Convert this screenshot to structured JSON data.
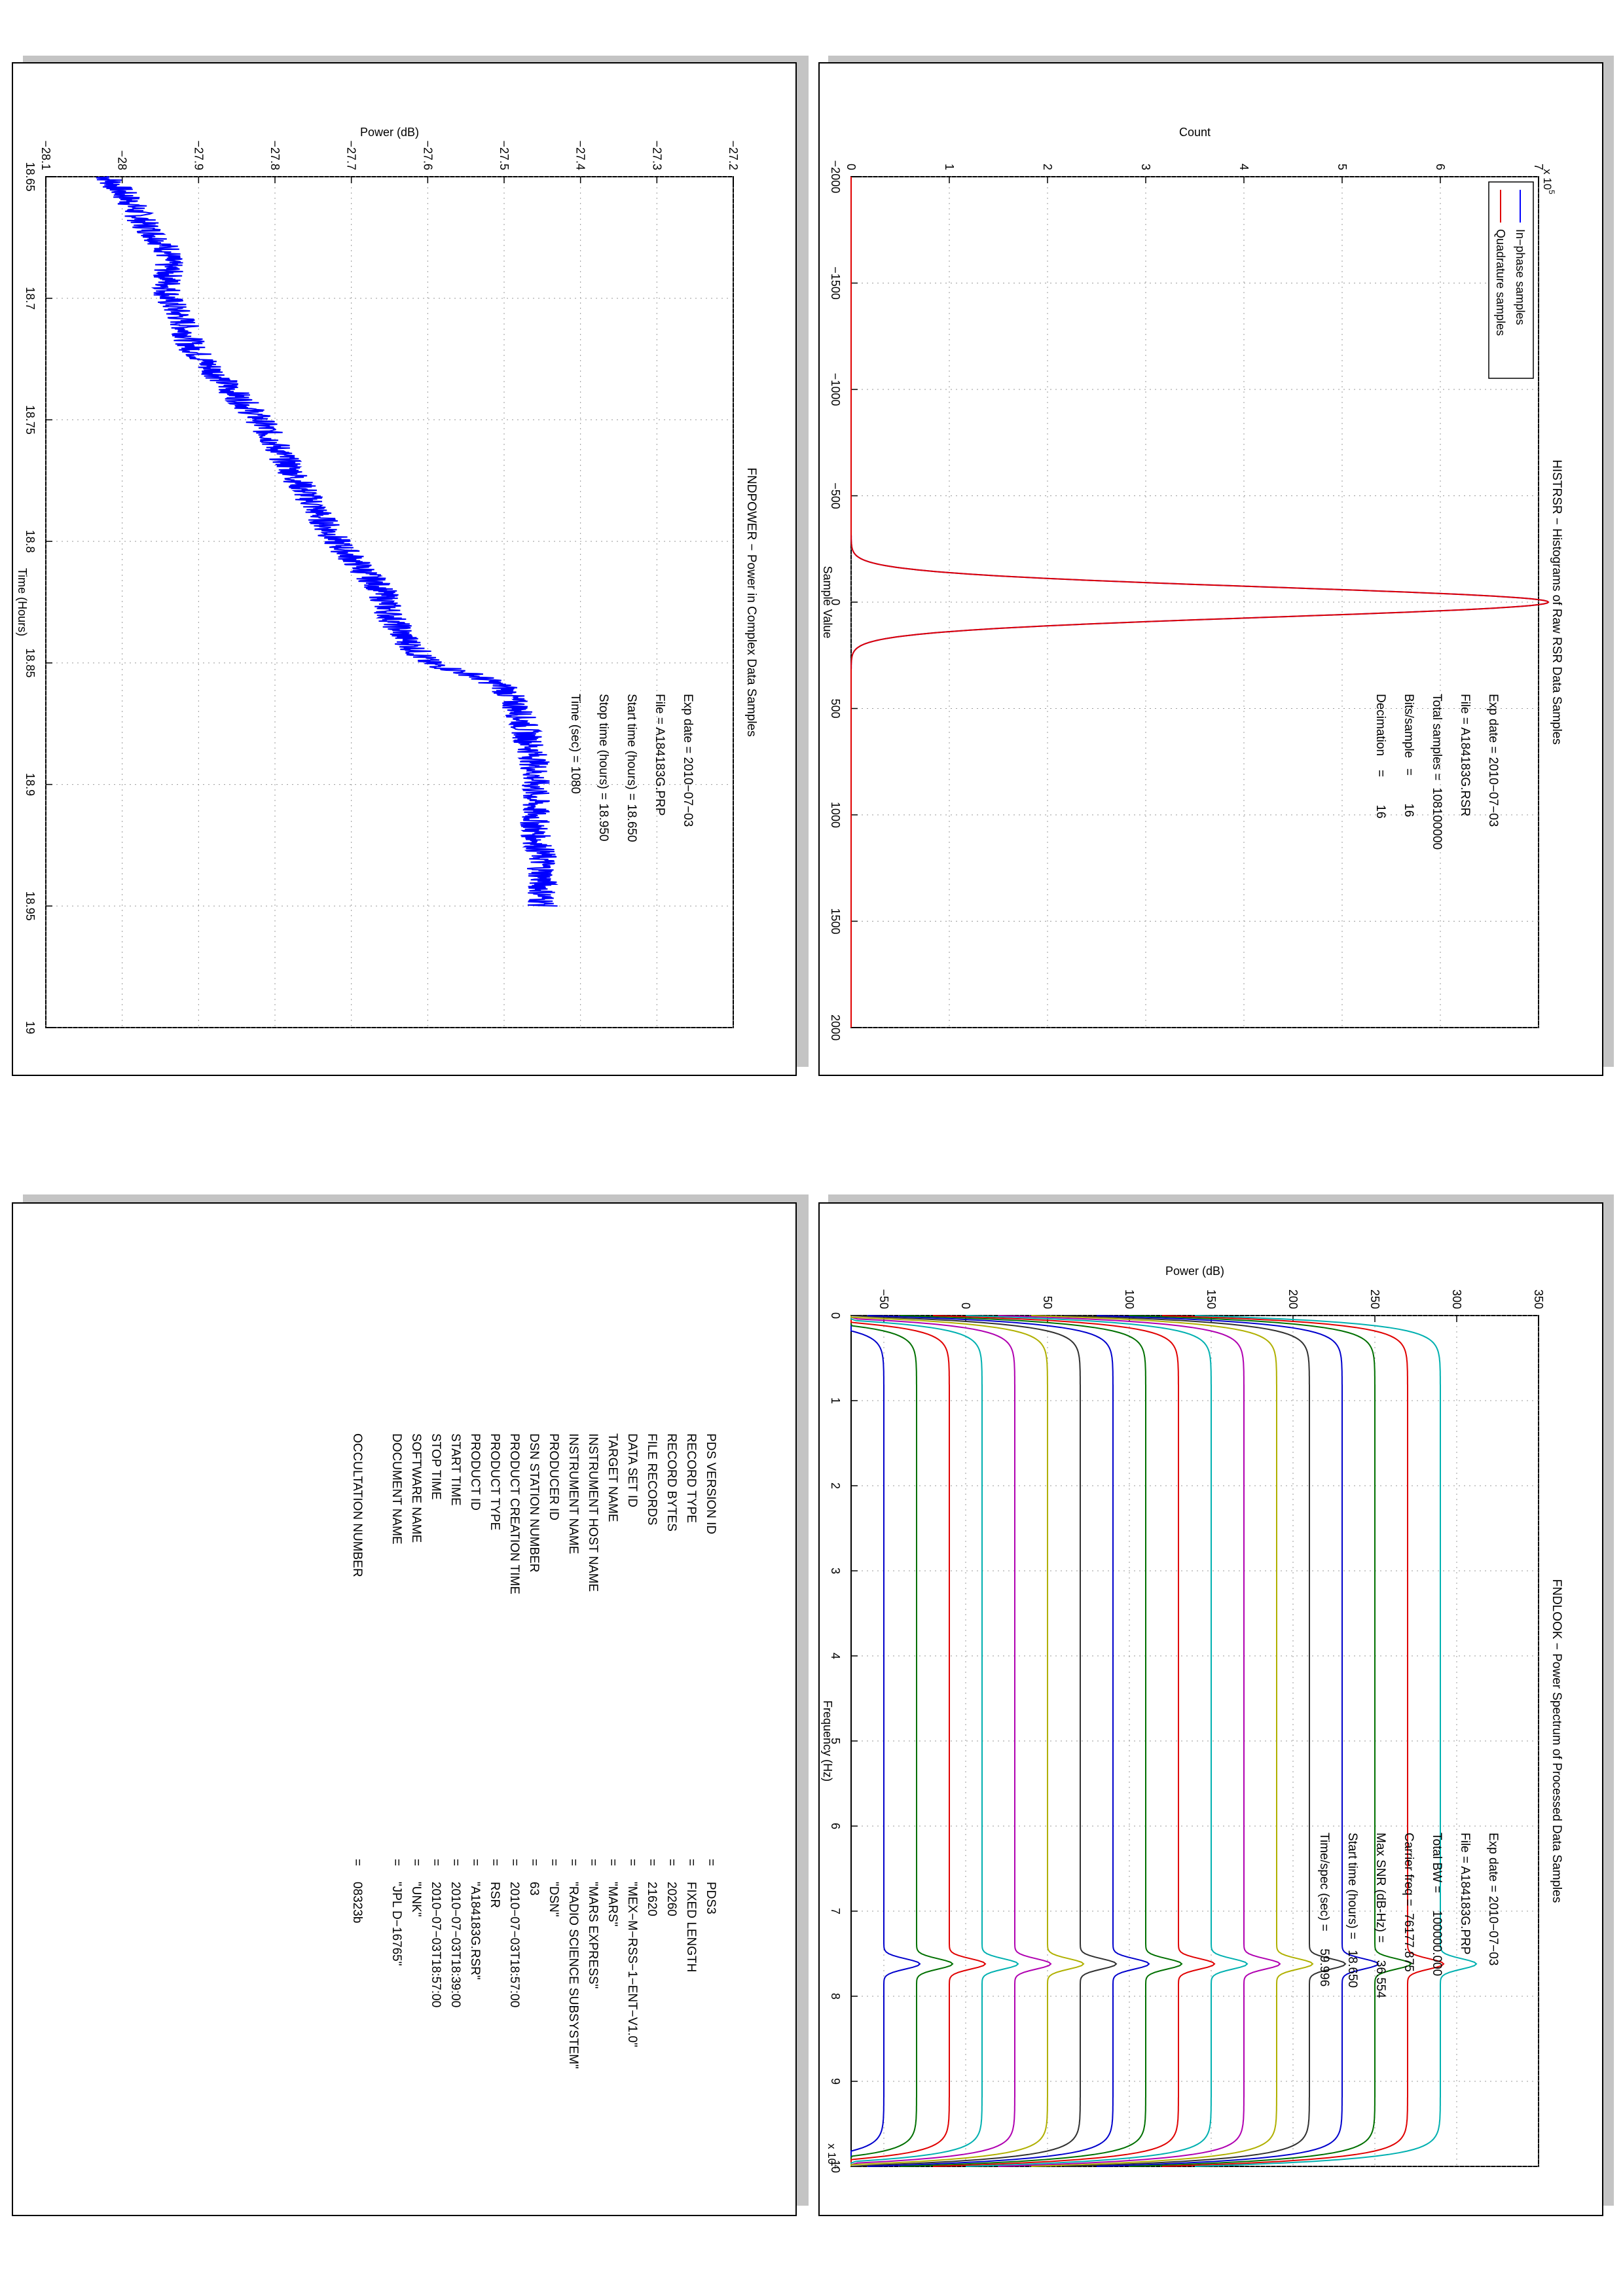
{
  "power_plot": {
    "title": "FNDPOWER − Power in Complex Data Samples",
    "xlabel": "Time (Hours)",
    "ylabel": "Power (dB)",
    "info": [
      "Exp date = 2010−07−03",
      "File = A184183G.PRP",
      "Start time (hours) = 18.650",
      "Stop time (hours) = 18.950",
      "Time (sec) = 1080"
    ]
  },
  "hist_plot": {
    "title": "HISTRSR − Histograms of Raw RSR Data Samples",
    "xlabel": "Sample Value",
    "ylabel": "Count",
    "exponent_label": "x 10",
    "exponent_power": "5",
    "legend": [
      "In−phase samples",
      "Quadrature samples"
    ],
    "info": [
      "Exp date = 2010−07−03",
      "File = A184183G.RSR",
      "Total samples =  108100000",
      "Bits/sample   =        16",
      "Decimation    =        16"
    ]
  },
  "look_plot": {
    "title": "FNDLOOK − Power Spectrum of Processed Data Samples",
    "xlabel": "Frequency (Hz)",
    "ylabel": "Power (dB)",
    "exponent_label": "x 10",
    "exponent_power": "4",
    "info": [
      "Exp date = 2010−07−03",
      "File = A184183G.PRP",
      "Total BW =     100000.000",
      "Carrier freq =  76177.875",
      "Max SNR (dB-Hz) =     36.554",
      "Start time (hours) =   18.650",
      "Time/spec (sec) =     59.996"
    ]
  },
  "label_table": {
    "rows": [
      {
        "key": "PDS VERSION ID",
        "value": "PDS3"
      },
      {
        "key": "RECORD TYPE",
        "value": "FIXED LENGTH"
      },
      {
        "key": "RECORD BYTES",
        "value": "20260"
      },
      {
        "key": "FILE RECORDS",
        "value": "21620"
      },
      {
        "key": "DATA SET ID",
        "value": "\"MEX−M−RSS−1−ENT−V1.0\""
      },
      {
        "key": "TARGET NAME",
        "value": "\"MARS\""
      },
      {
        "key": "INSTRUMENT HOST NAME",
        "value": "\"MARS EXPRESS\""
      },
      {
        "key": "INSTRUMENT NAME",
        "value": "\"RADIO SCIENCE SUBSYSTEM\""
      },
      {
        "key": "PRODUCER ID",
        "value": "\"DSN\""
      },
      {
        "key": "DSN STATION NUMBER",
        "value": "63"
      },
      {
        "key": "PRODUCT CREATION TIME",
        "value": "2010−07−03T18:57:00"
      },
      {
        "key": "PRODUCT TYPE",
        "value": "RSR"
      },
      {
        "key": "PRODUCT ID",
        "value": "\"A184183G.RSR\""
      },
      {
        "key": "START TIME",
        "value": "2010−07−03T18:39:00"
      },
      {
        "key": "STOP TIME",
        "value": "2010−07−03T18:57:00"
      },
      {
        "key": "SOFTWARE NAME",
        "value": "\"UNK\""
      },
      {
        "key": "DOCUMENT NAME",
        "value": "\"JPL D−16765\""
      },
      {
        "key": "",
        "value": ""
      },
      {
        "key": "OCCULTATION NUMBER",
        "value": "08323b"
      }
    ]
  },
  "chart_data": [
    {
      "type": "line",
      "title": "FNDPOWER − Power in Complex Data Samples",
      "xlabel": "Time (Hours)",
      "ylabel": "Power (dB)",
      "xlim": [
        18.65,
        19.0
      ],
      "ylim": [
        -28.1,
        -27.2
      ],
      "x_ticks": [
        "18.65",
        "18.7",
        "18.75",
        "18.8",
        "18.85",
        "18.9",
        "18.95",
        "19"
      ],
      "y_ticks": [
        "−28.1",
        "−28",
        "−27.9",
        "−27.8",
        "−27.7",
        "−27.6",
        "−27.5",
        "−27.4",
        "−27.3",
        "−27.2"
      ],
      "grid": true,
      "series": [
        {
          "color": "#0000ff",
          "x": [
            18.65,
            18.66,
            18.67,
            18.68,
            18.69,
            18.7,
            18.71,
            18.72,
            18.73,
            18.74,
            18.75,
            18.76,
            18.77,
            18.78,
            18.79,
            18.8,
            18.81,
            18.82,
            18.83,
            18.84,
            18.85,
            18.855,
            18.86,
            18.87,
            18.88,
            18.89,
            18.9,
            18.91,
            18.92,
            18.93,
            18.94,
            18.95
          ],
          "y": [
            -28.02,
            -27.99,
            -27.97,
            -27.94,
            -27.94,
            -27.94,
            -27.92,
            -27.91,
            -27.88,
            -27.85,
            -27.82,
            -27.8,
            -27.78,
            -27.76,
            -27.74,
            -27.72,
            -27.69,
            -27.66,
            -27.65,
            -27.63,
            -27.6,
            -27.54,
            -27.5,
            -27.48,
            -27.47,
            -27.46,
            -27.46,
            -27.46,
            -27.46,
            -27.45,
            -27.45,
            -27.45
          ],
          "noise_amplitude": 0.02
        }
      ]
    },
    {
      "type": "line",
      "title": "HISTRSR − Histograms of Raw RSR Data Samples",
      "xlabel": "Sample Value",
      "ylabel": "Count",
      "xlim": [
        -2000,
        2000
      ],
      "ylim": [
        0,
        7
      ],
      "y_scale_factor": "x 10^5",
      "x_ticks": [
        "−2000",
        "−1500",
        "−1000",
        "−500",
        "0",
        "500",
        "1000",
        "1500",
        "2000"
      ],
      "y_ticks": [
        "0",
        "1",
        "2",
        "3",
        "4",
        "5",
        "6",
        "7"
      ],
      "grid": true,
      "legend_position": "top-left",
      "series": [
        {
          "name": "In−phase samples",
          "color": "#0000ff",
          "peak": 7.1,
          "center": 0,
          "sigma": 70
        },
        {
          "name": "Quadrature samples",
          "color": "#e00000",
          "peak": 7.1,
          "center": 0,
          "sigma": 70
        }
      ]
    },
    {
      "type": "line",
      "title": "FNDLOOK − Power Spectrum of Processed Data Samples",
      "xlabel": "Frequency (Hz)",
      "ylabel": "Power (dB)",
      "xlim": [
        0,
        10
      ],
      "ylim": [
        -70,
        350
      ],
      "x_scale_factor": "x 10^4",
      "x_ticks": [
        "0",
        "1",
        "2",
        "3",
        "4",
        "5",
        "6",
        "7",
        "8",
        "9",
        "10"
      ],
      "y_ticks": [
        "−50",
        "0",
        "50",
        "100",
        "150",
        "200",
        "250",
        "300",
        "350"
      ],
      "grid": true,
      "peak_frequency": 7.62,
      "series": [
        {
          "color": "#0000cc",
          "level": -50
        },
        {
          "color": "#007000",
          "level": -30
        },
        {
          "color": "#e00000",
          "level": -10
        },
        {
          "color": "#00b0b0",
          "level": 10
        },
        {
          "color": "#b000b0",
          "level": 30
        },
        {
          "color": "#b0b000",
          "level": 50
        },
        {
          "color": "#303030",
          "level": 70
        },
        {
          "color": "#0000cc",
          "level": 90
        },
        {
          "color": "#007000",
          "level": 110
        },
        {
          "color": "#e00000",
          "level": 130
        },
        {
          "color": "#00b0b0",
          "level": 150
        },
        {
          "color": "#b000b0",
          "level": 170
        },
        {
          "color": "#b0b000",
          "level": 190
        },
        {
          "color": "#303030",
          "level": 210
        },
        {
          "color": "#0000cc",
          "level": 230
        },
        {
          "color": "#007000",
          "level": 250
        },
        {
          "color": "#e00000",
          "level": 270
        },
        {
          "color": "#00b0b0",
          "level": 290
        }
      ]
    }
  ]
}
